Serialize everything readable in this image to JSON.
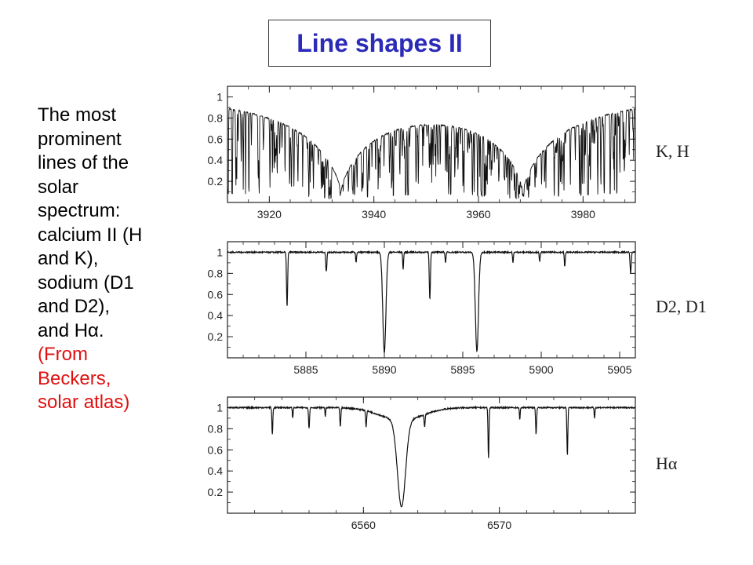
{
  "slide": {
    "title": "Line shapes II",
    "caption_lines": [
      "The most",
      "prominent",
      "lines of the",
      "solar",
      "spectrum:",
      "calcium II (H",
      "and K),",
      "sodium (D1",
      "and D2),",
      "and Hα."
    ],
    "source_lines": [
      "(From",
      "Beckers,",
      "solar atlas)"
    ]
  },
  "chart_data": [
    {
      "type": "line",
      "annotation": "K,  H",
      "xlim": [
        3912,
        3990
      ],
      "ylim": [
        0,
        1.1
      ],
      "xticks": [
        "3920",
        "3940",
        "3960",
        "3980"
      ],
      "xtick_values": [
        3920,
        3940,
        3960,
        3980
      ],
      "yticks": [
        "0.2",
        "0.4",
        "0.6",
        "0.8",
        "1"
      ],
      "ytick_values": [
        0.2,
        0.4,
        0.6,
        0.8,
        1.0
      ],
      "continuum": 1.0,
      "lines": [
        {
          "center": 3933.7,
          "depth": 0.9,
          "width": 3.2,
          "shape": "cusp"
        },
        {
          "center": 3968.5,
          "depth": 0.9,
          "width": 3.2,
          "shape": "cusp"
        }
      ],
      "dense_lines": true
    },
    {
      "type": "line",
      "annotation": "D2,  D1",
      "xlim": [
        5880,
        5906
      ],
      "ylim": [
        0,
        1.1
      ],
      "xticks": [
        "5885",
        "5890",
        "5895",
        "5900",
        "5905"
      ],
      "xtick_values": [
        5885,
        5890,
        5895,
        5900,
        5905
      ],
      "yticks": [
        "0.2",
        "0.4",
        "0.6",
        "0.8",
        "1"
      ],
      "ytick_values": [
        0.2,
        0.4,
        0.6,
        0.8,
        1.0
      ],
      "continuum": 1.0,
      "lines": [
        {
          "center": 5890.0,
          "depth": 0.95,
          "width": 0.14
        },
        {
          "center": 5895.9,
          "depth": 0.94,
          "width": 0.14
        },
        {
          "center": 5883.8,
          "depth": 0.52,
          "width": 0.05
        },
        {
          "center": 5892.9,
          "depth": 0.45,
          "width": 0.05
        },
        {
          "center": 5886.3,
          "depth": 0.18,
          "width": 0.05
        },
        {
          "center": 5888.2,
          "depth": 0.1,
          "width": 0.04
        },
        {
          "center": 5891.2,
          "depth": 0.16,
          "width": 0.04
        },
        {
          "center": 5893.9,
          "depth": 0.1,
          "width": 0.04
        },
        {
          "center": 5898.2,
          "depth": 0.1,
          "width": 0.04
        },
        {
          "center": 5899.9,
          "depth": 0.09,
          "width": 0.04
        },
        {
          "center": 5901.5,
          "depth": 0.14,
          "width": 0.04
        },
        {
          "center": 5905.7,
          "depth": 0.2,
          "width": 0.05
        }
      ]
    },
    {
      "type": "line",
      "annotation": "Hα",
      "xlim": [
        6550,
        6580
      ],
      "ylim": [
        0,
        1.1
      ],
      "xticks": [
        "6560",
        "6570"
      ],
      "xtick_values": [
        6560,
        6570
      ],
      "yticks": [
        "0.2",
        "0.4",
        "0.6",
        "0.8",
        "1"
      ],
      "ytick_values": [
        0.2,
        0.4,
        0.6,
        0.8,
        1.0
      ],
      "continuum": 1.0,
      "lines": [
        {
          "center": 6562.8,
          "depth": 0.82,
          "width": 0.42,
          "wing": 0.12,
          "wing_width": 2.2
        },
        {
          "center": 6569.2,
          "depth": 0.48,
          "width": 0.05
        },
        {
          "center": 6575.0,
          "depth": 0.45,
          "width": 0.05
        },
        {
          "center": 6572.7,
          "depth": 0.25,
          "width": 0.05
        },
        {
          "center": 6553.3,
          "depth": 0.25,
          "width": 0.05
        },
        {
          "center": 6556.0,
          "depth": 0.2,
          "width": 0.05
        },
        {
          "center": 6558.3,
          "depth": 0.18,
          "width": 0.05
        },
        {
          "center": 6560.2,
          "depth": 0.15,
          "width": 0.05
        },
        {
          "center": 6564.5,
          "depth": 0.12,
          "width": 0.05
        },
        {
          "center": 6571.5,
          "depth": 0.12,
          "width": 0.04
        },
        {
          "center": 6577.0,
          "depth": 0.1,
          "width": 0.04
        },
        {
          "center": 6554.8,
          "depth": 0.1,
          "width": 0.04
        },
        {
          "center": 6557.2,
          "depth": 0.08,
          "width": 0.04
        }
      ]
    }
  ]
}
